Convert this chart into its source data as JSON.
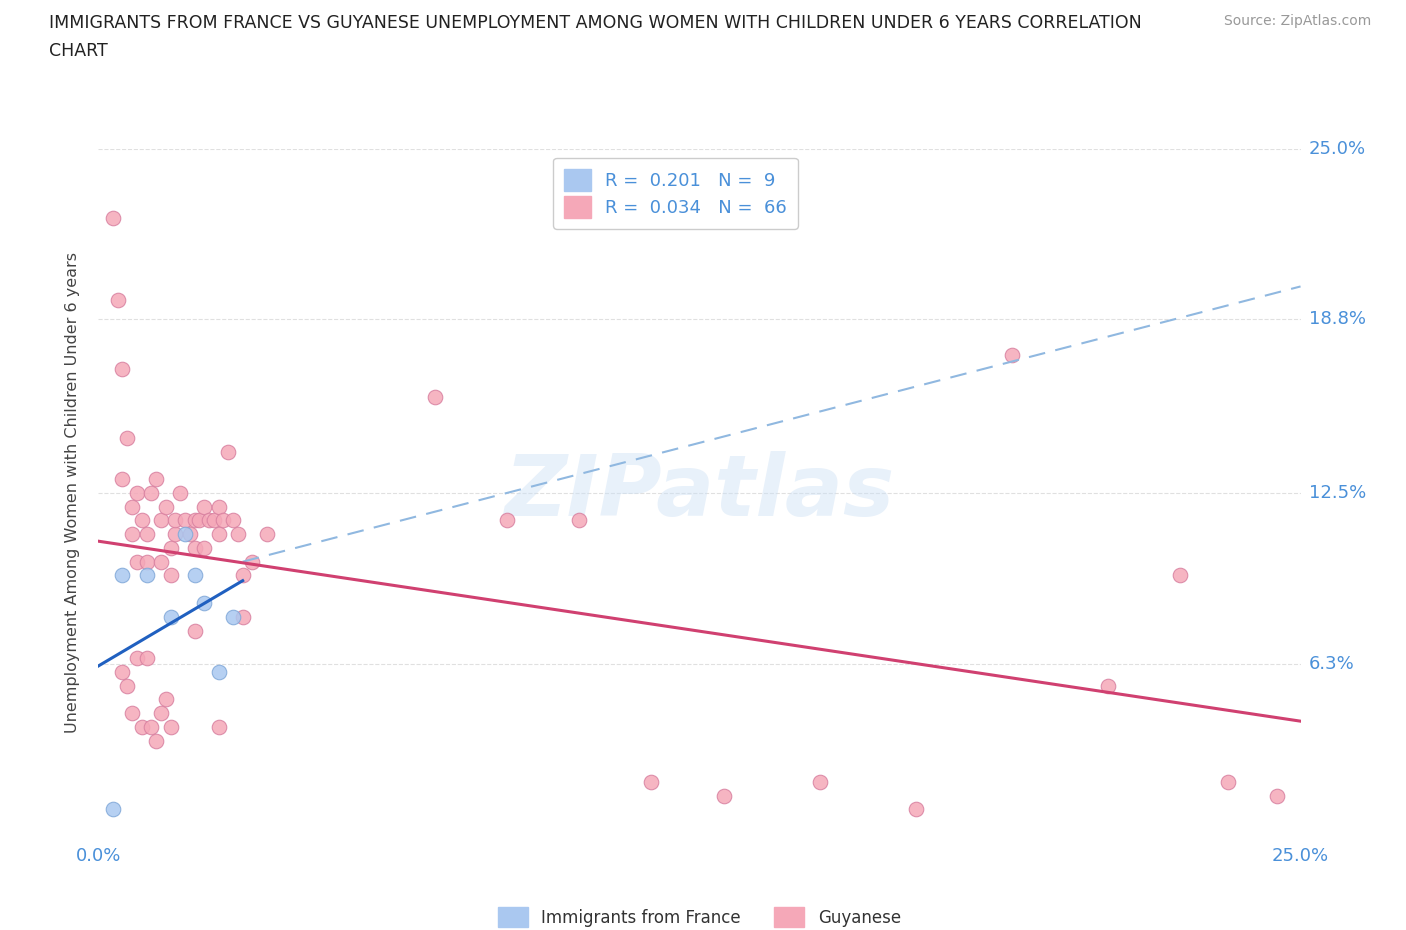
{
  "title_line1": "IMMIGRANTS FROM FRANCE VS GUYANESE UNEMPLOYMENT AMONG WOMEN WITH CHILDREN UNDER 6 YEARS CORRELATION",
  "title_line2": "CHART",
  "source": "Source: ZipAtlas.com",
  "ylabel": "Unemployment Among Women with Children Under 6 years",
  "xlim": [
    0.0,
    0.25
  ],
  "ylim": [
    0.0,
    0.25
  ],
  "ytick_vals": [
    0.063,
    0.125,
    0.188,
    0.25
  ],
  "ytick_labels": [
    "6.3%",
    "12.5%",
    "18.8%",
    "25.0%"
  ],
  "xtick_vals": [
    0.0,
    0.25
  ],
  "xtick_labels": [
    "0.0%",
    "25.0%"
  ],
  "watermark": "ZIPatlas",
  "france_color": "#aac8f0",
  "france_edge_color": "#80a8d8",
  "guyanese_color": "#f5a8b8",
  "guyanese_edge_color": "#d880a0",
  "france_R": 0.201,
  "france_N": 9,
  "guyanese_R": 0.034,
  "guyanese_N": 66,
  "france_x": [
    0.003,
    0.005,
    0.01,
    0.015,
    0.018,
    0.02,
    0.022,
    0.025,
    0.028
  ],
  "france_y": [
    0.01,
    0.095,
    0.095,
    0.08,
    0.11,
    0.095,
    0.085,
    0.06,
    0.08
  ],
  "guyanese_x": [
    0.003,
    0.004,
    0.005,
    0.005,
    0.006,
    0.007,
    0.007,
    0.008,
    0.008,
    0.009,
    0.01,
    0.01,
    0.011,
    0.012,
    0.013,
    0.013,
    0.014,
    0.015,
    0.015,
    0.016,
    0.016,
    0.017,
    0.018,
    0.019,
    0.02,
    0.02,
    0.021,
    0.022,
    0.022,
    0.023,
    0.024,
    0.025,
    0.025,
    0.026,
    0.027,
    0.028,
    0.029,
    0.03,
    0.032,
    0.035,
    0.005,
    0.006,
    0.007,
    0.008,
    0.009,
    0.01,
    0.011,
    0.012,
    0.013,
    0.014,
    0.015,
    0.02,
    0.025,
    0.03,
    0.07,
    0.085,
    0.1,
    0.115,
    0.13,
    0.15,
    0.17,
    0.19,
    0.21,
    0.225,
    0.235,
    0.245
  ],
  "guyanese_y": [
    0.225,
    0.195,
    0.17,
    0.13,
    0.145,
    0.12,
    0.11,
    0.125,
    0.1,
    0.115,
    0.11,
    0.1,
    0.125,
    0.13,
    0.115,
    0.1,
    0.12,
    0.105,
    0.095,
    0.11,
    0.115,
    0.125,
    0.115,
    0.11,
    0.115,
    0.105,
    0.115,
    0.105,
    0.12,
    0.115,
    0.115,
    0.12,
    0.11,
    0.115,
    0.14,
    0.115,
    0.11,
    0.08,
    0.1,
    0.11,
    0.06,
    0.055,
    0.045,
    0.065,
    0.04,
    0.065,
    0.04,
    0.035,
    0.045,
    0.05,
    0.04,
    0.075,
    0.04,
    0.095,
    0.16,
    0.115,
    0.115,
    0.02,
    0.015,
    0.02,
    0.01,
    0.175,
    0.055,
    0.095,
    0.02,
    0.015
  ],
  "france_line_color": "#2060c0",
  "guyanese_line_color": "#d04070",
  "dashed_line_color": "#90b8e0",
  "background_color": "#ffffff",
  "grid_color": "#e0e0e0",
  "title_color": "#222222",
  "ylabel_color": "#444444",
  "tick_color": "#4a90d9",
  "legend_france_label": "Immigrants from France",
  "legend_guyanese_label": "Guyanese",
  "france_line_xmin": 0.0,
  "france_line_xmax": 0.03,
  "dashed_line_x1": 0.03,
  "dashed_line_y1": 0.1,
  "dashed_line_x2": 0.25,
  "dashed_line_y2": 0.2
}
